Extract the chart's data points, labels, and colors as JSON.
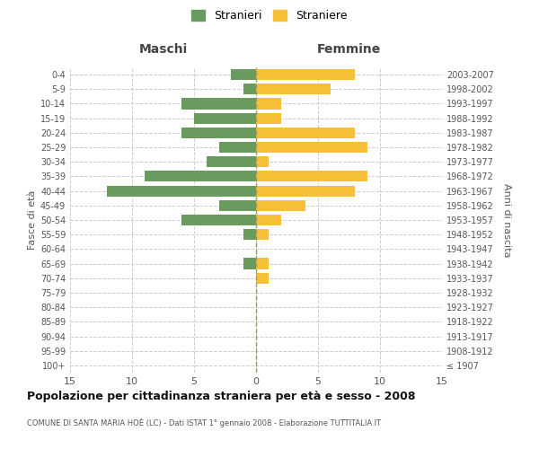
{
  "age_groups": [
    "100+",
    "95-99",
    "90-94",
    "85-89",
    "80-84",
    "75-79",
    "70-74",
    "65-69",
    "60-64",
    "55-59",
    "50-54",
    "45-49",
    "40-44",
    "35-39",
    "30-34",
    "25-29",
    "20-24",
    "15-19",
    "10-14",
    "5-9",
    "0-4"
  ],
  "birth_years": [
    "≤ 1907",
    "1908-1912",
    "1913-1917",
    "1918-1922",
    "1923-1927",
    "1928-1932",
    "1933-1937",
    "1938-1942",
    "1943-1947",
    "1948-1952",
    "1953-1957",
    "1958-1962",
    "1963-1967",
    "1968-1972",
    "1973-1977",
    "1978-1982",
    "1983-1987",
    "1988-1992",
    "1993-1997",
    "1998-2002",
    "2003-2007"
  ],
  "maschi": [
    0,
    0,
    0,
    0,
    0,
    0,
    0,
    1,
    0,
    1,
    6,
    3,
    12,
    9,
    4,
    3,
    6,
    5,
    6,
    1,
    2
  ],
  "femmine": [
    0,
    0,
    0,
    0,
    0,
    0,
    1,
    1,
    0,
    1,
    2,
    4,
    8,
    9,
    1,
    9,
    8,
    2,
    2,
    6,
    8
  ],
  "male_color": "#6a9b5e",
  "female_color": "#f5c036",
  "title": "Popolazione per cittadinanza straniera per età e sesso - 2008",
  "subtitle": "COMUNE DI SANTA MARIA HOÈ (LC) - Dati ISTAT 1° gennaio 2008 - Elaborazione TUTTITALIA.IT",
  "xlabel_left": "Maschi",
  "xlabel_right": "Femmine",
  "ylabel_left": "Fasce di età",
  "ylabel_right": "Anni di nascita",
  "legend_maschi": "Stranieri",
  "legend_femmine": "Straniere",
  "xlim": 15,
  "background_color": "#ffffff",
  "grid_color": "#cccccc"
}
